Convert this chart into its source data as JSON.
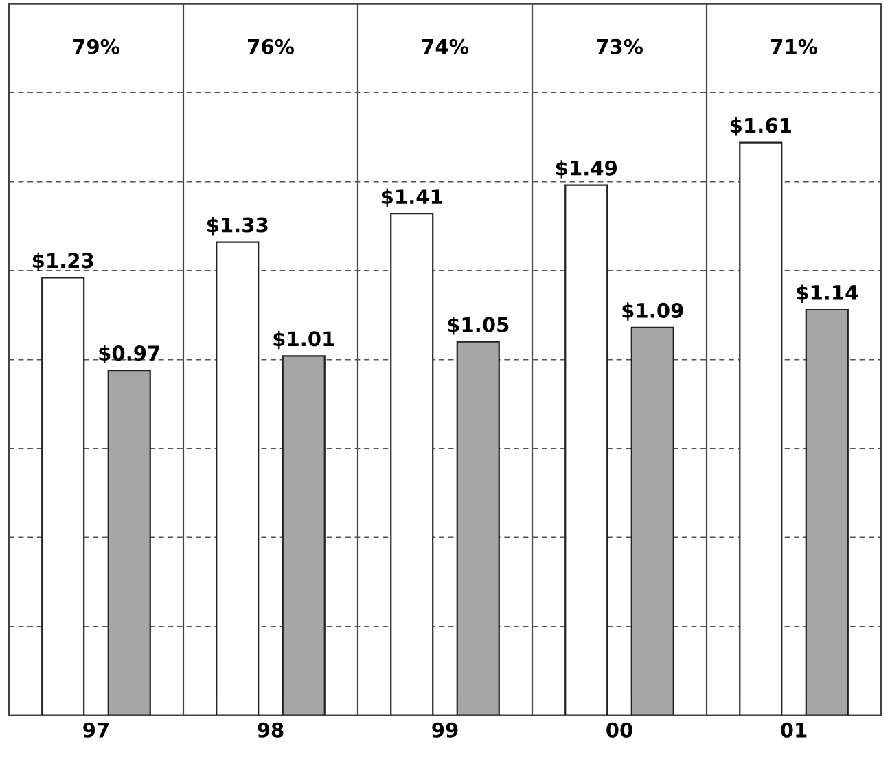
{
  "chart_data": {
    "type": "bar",
    "categories": [
      "97",
      "98",
      "99",
      "00",
      "01"
    ],
    "series": [
      {
        "color": "#ffffff",
        "values": [
          1.23,
          1.33,
          1.41,
          1.49,
          1.61
        ],
        "value_labels": [
          "$1.23",
          "$1.33",
          "$1.41",
          "$1.49",
          "$1.61"
        ]
      },
      {
        "color": "#a6a6a6",
        "values": [
          0.97,
          1.01,
          1.05,
          1.09,
          1.14
        ],
        "value_labels": [
          "$0.97",
          "$1.01",
          "$1.05",
          "$1.09",
          "$1.14"
        ]
      }
    ],
    "annotations": [
      "79%",
      "76%",
      "74%",
      "73%",
      "71%"
    ],
    "ylim": [
      0,
      2.0
    ],
    "yticks": [
      {
        "value": 0.25,
        "label": null
      },
      {
        "value": 0.5,
        "label": null
      },
      {
        "value": 0.75,
        "label": null
      },
      {
        "value": 1.0,
        "label": null
      },
      {
        "value": 1.25,
        "label": null
      },
      {
        "value": 1.5,
        "label": null
      },
      {
        "value": 1.75,
        "label": null
      }
    ],
    "tick_labels": "x",
    "grid": true
  }
}
